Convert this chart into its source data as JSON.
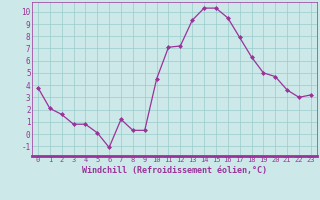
{
  "hours": [
    0,
    1,
    2,
    3,
    4,
    5,
    6,
    7,
    8,
    9,
    10,
    11,
    12,
    13,
    14,
    15,
    16,
    17,
    18,
    19,
    20,
    21,
    22,
    23
  ],
  "values": [
    3.8,
    2.1,
    1.6,
    0.8,
    0.8,
    0.1,
    -1.1,
    1.2,
    0.3,
    0.3,
    4.5,
    7.1,
    7.2,
    9.3,
    10.3,
    10.3,
    9.5,
    7.9,
    6.3,
    5.0,
    4.7,
    3.6,
    3.0,
    3.2
  ],
  "line_color": "#993399",
  "marker": "D",
  "marker_size": 2.0,
  "bg_color": "#cce8e8",
  "grid_color": "#99cccc",
  "xlabel": "Windchill (Refroidissement éolien,°C)",
  "ylim": [
    -1.8,
    10.8
  ],
  "yticks": [
    -1,
    0,
    1,
    2,
    3,
    4,
    5,
    6,
    7,
    8,
    9,
    10
  ],
  "xlim": [
    -0.5,
    23.5
  ],
  "line_width": 0.9,
  "tick_color": "#993399",
  "label_color": "#993399",
  "spine_color": "#993399",
  "border_color": "#993399"
}
